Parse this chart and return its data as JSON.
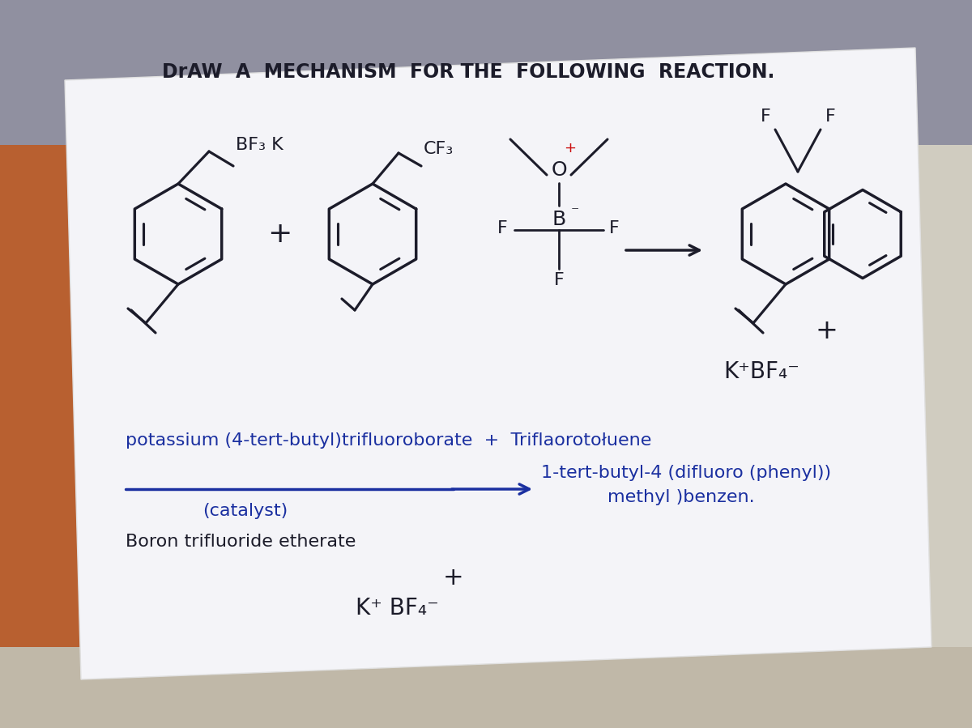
{
  "fig_width": 12.0,
  "fig_height": 8.99,
  "bg_left_color": "#c8764a",
  "bg_right_color": "#d4c8b8",
  "paper_color": "#f0f0f5",
  "ink_color": "#1c1c2a",
  "blue_ink": "#1a2fa0",
  "red_color": "#cc1111",
  "title": "DrAW  A  MECHANISM  FOR THE  FOLLOWING  REACTION.",
  "line1": "potassium (4-tert-butyl)trifluoroborate  +  Triflaorotołuene",
  "catalyst_label": "(catalyst)",
  "product_line1": "1-tert-butyl-4 (difluoro (phenyl))",
  "product_line2": "methyl )benzen.",
  "catalyst_name": "Boron trifluoride etherate",
  "plus_sign": "+",
  "kbf4": "K⁺ BF₄⁻",
  "kbf4_upper": "K⁺BF₄⁻"
}
